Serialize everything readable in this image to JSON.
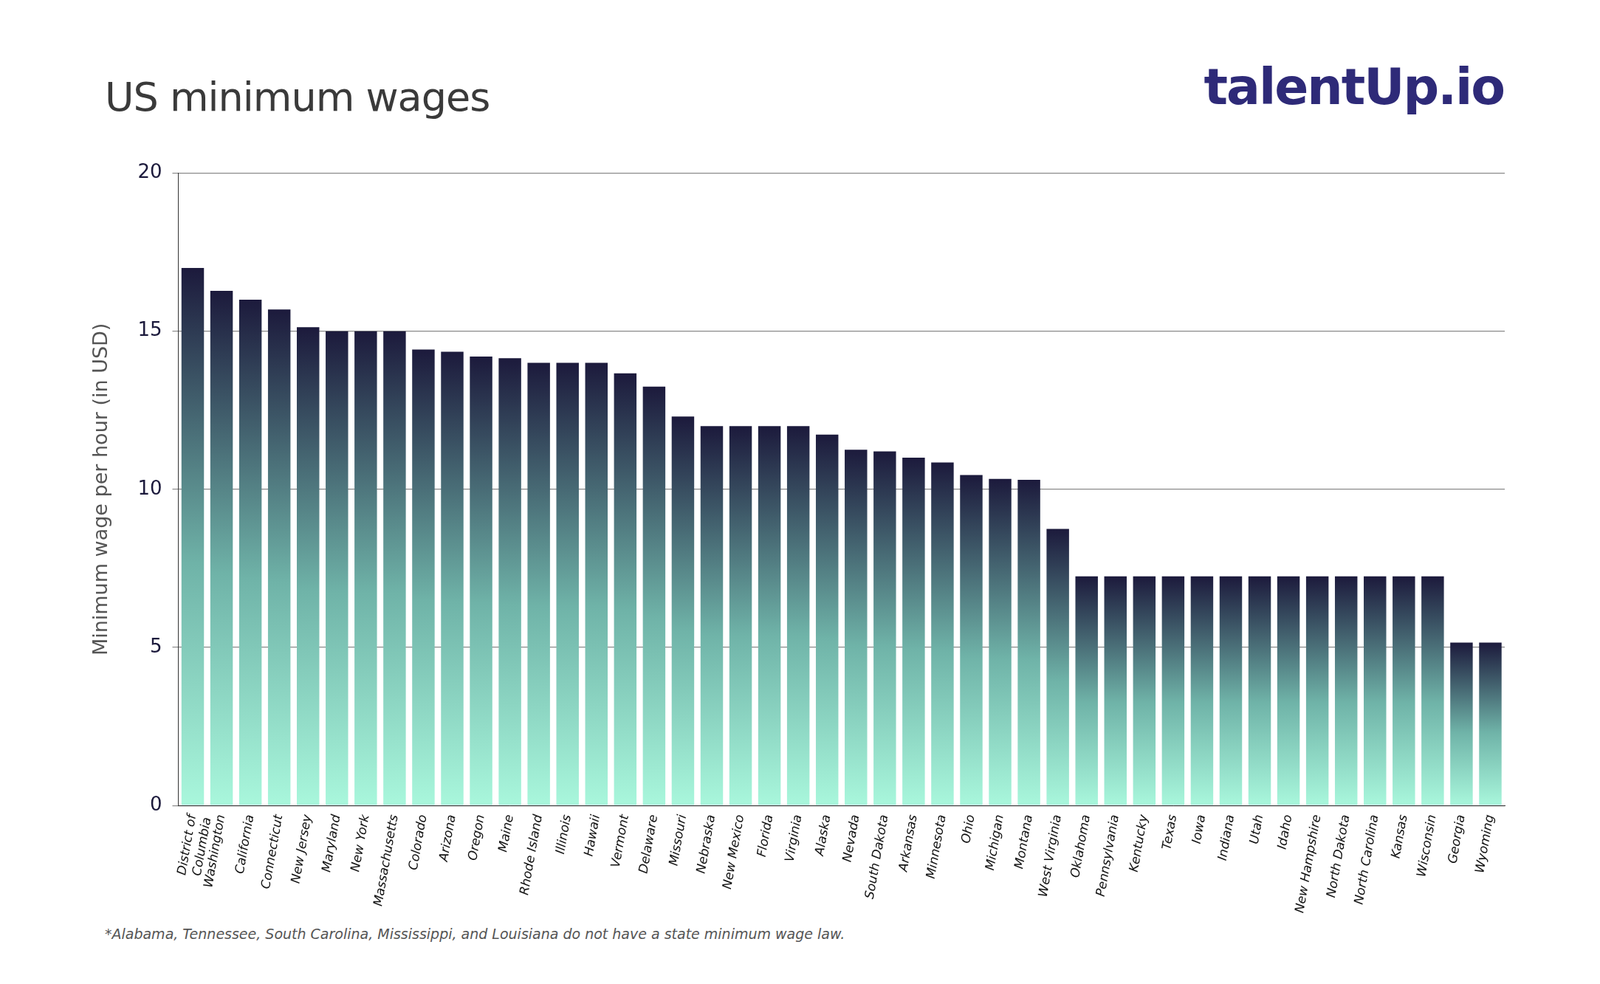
{
  "chart_data": {
    "type": "bar",
    "title": "US minimum wages",
    "brand": "talentUp.io",
    "note": "*Alabama, Tennessee, South Carolina, Mississippi, and Louisiana do not have a state minimum wage law.",
    "y_label": "Minimum wage per hour (in USD)",
    "categories": [
      [
        "District of",
        "Columbia"
      ],
      "Washington",
      "California",
      "Connecticut",
      "New Jersey",
      "Maryland",
      "New York",
      "Massachusetts",
      "Colorado",
      "Arizona",
      "Oregon",
      "Maine",
      "Rhode Island",
      "Illinois",
      "Hawaii",
      "Vermont",
      "Delaware",
      "Missouri",
      "Nebraska",
      "New Mexico",
      "Florida",
      "Virginia",
      "Alaska",
      "Nevada",
      "South Dakota",
      "Arkansas",
      "Minnesota",
      "Ohio",
      "Michigan",
      "Montana",
      "West Virginia",
      "Oklahoma",
      "Pennsylvania",
      "Kentucky",
      "Texas",
      "Iowa",
      "Indiana",
      "Utah",
      "Idaho",
      "New Hampshire",
      "North Dakota",
      "North Carolina",
      "Kansas",
      "Wisconsin",
      "Georgia",
      "Wyoming"
    ],
    "values": [
      17.0,
      16.28,
      16.0,
      15.69,
      15.13,
      15.0,
      15.0,
      15.0,
      14.42,
      14.35,
      14.2,
      14.15,
      14.0,
      14.0,
      14.0,
      13.67,
      13.25,
      12.3,
      12.0,
      12.0,
      12.0,
      12.0,
      11.73,
      11.25,
      11.2,
      11.0,
      10.85,
      10.45,
      10.33,
      10.3,
      8.75,
      7.25,
      7.25,
      7.25,
      7.25,
      7.25,
      7.25,
      7.25,
      7.25,
      7.25,
      7.25,
      7.25,
      7.25,
      7.25,
      5.15,
      5.15
    ],
    "color": "#1c1a3c",
    "ylim": [
      0,
      20
    ],
    "yticks": [
      0,
      5,
      10,
      15,
      20
    ],
    "grid": true
  }
}
